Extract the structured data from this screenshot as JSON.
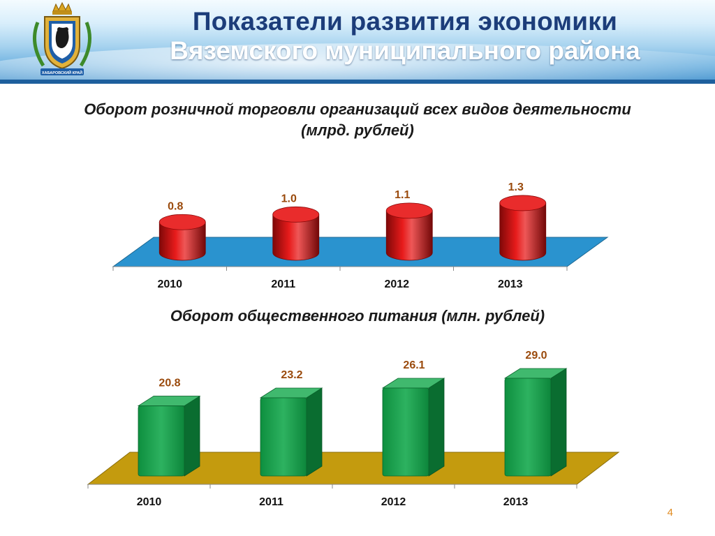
{
  "header": {
    "title_line1": "Показатели развития экономики",
    "title_line2": "Вяземского муниципального района",
    "emblem_text": "ХАБАРОВСКИЙ КРАЙ"
  },
  "page_number": "4",
  "colors": {
    "retail_bar": "#e60f0f",
    "retail_floor": "#2a93cf",
    "food_bar": "#10a84a",
    "food_floor": "#c49b0e",
    "label_text": "#9a4a0c"
  },
  "chart_data": [
    {
      "type": "bar",
      "title": "Оборот розничной торговли организаций всех видов деятельности (млрд. рублей)",
      "title_line1": "Оборот розничной торговли организаций всех видов деятельности",
      "title_line2": "(млрд. рублей)",
      "categories": [
        "2010",
        "2011",
        "2012",
        "2013"
      ],
      "values": [
        0.8,
        1.0,
        1.1,
        1.3
      ],
      "value_labels": [
        "0.8",
        "1.0",
        "1.1",
        "1.3"
      ],
      "xlabel": "",
      "ylabel": "",
      "shape": "cylinder"
    },
    {
      "type": "bar",
      "title": "Оборот общественного питания (млн. рублей)",
      "categories": [
        "2010",
        "2011",
        "2012",
        "2013"
      ],
      "values": [
        20.8,
        23.2,
        26.1,
        29.0
      ],
      "value_labels": [
        "20.8",
        "23.2",
        "26.1",
        "29.0"
      ],
      "xlabel": "",
      "ylabel": "",
      "shape": "box"
    }
  ]
}
